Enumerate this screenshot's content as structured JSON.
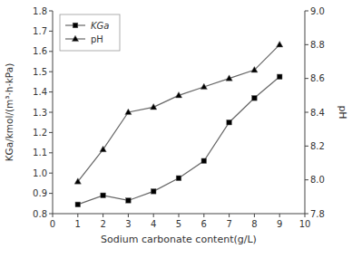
{
  "chart_data": {
    "type": "line",
    "x_label": "Sodium carbonate content(g/L)",
    "y_label": "KGa/kmol/(m³·h·kPa)",
    "y2_label": "pH",
    "x": [
      1,
      2,
      3,
      4,
      5,
      6,
      7,
      8,
      9
    ],
    "series": [
      {
        "name": "KGa",
        "color": "#666666",
        "marker": "square",
        "values": [
          0.845,
          0.89,
          0.865,
          0.91,
          0.975,
          1.06,
          1.25,
          1.37,
          1.475
        ]
      },
      {
        "name": "pH",
        "color": "#666666",
        "marker": "triangle",
        "axis": "y2",
        "values": [
          7.99,
          8.18,
          8.4,
          8.43,
          8.5,
          8.55,
          8.6,
          8.65,
          8.8
        ]
      }
    ],
    "xlim": [
      0,
      10
    ],
    "xticks": [
      0,
      1,
      2,
      3,
      4,
      5,
      6,
      7,
      8,
      9,
      10
    ],
    "ylim": [
      0.8,
      1.8
    ],
    "yticks": [
      0.8,
      0.9,
      {
        "value": 1.0,
        "label": "1.0"
      },
      1.1,
      1.2,
      1.3,
      1.4,
      1.5,
      1.6,
      1.7,
      1.8
    ],
    "y2lim": [
      7.8,
      9.0
    ],
    "y2ticks": [
      7.8,
      {
        "value": 8.0,
        "label": "8.0"
      },
      8.2,
      8.4,
      8.6,
      8.8,
      {
        "value": 9.0,
        "label": "9.0"
      }
    ],
    "grid": false,
    "legend": "upper-left"
  }
}
